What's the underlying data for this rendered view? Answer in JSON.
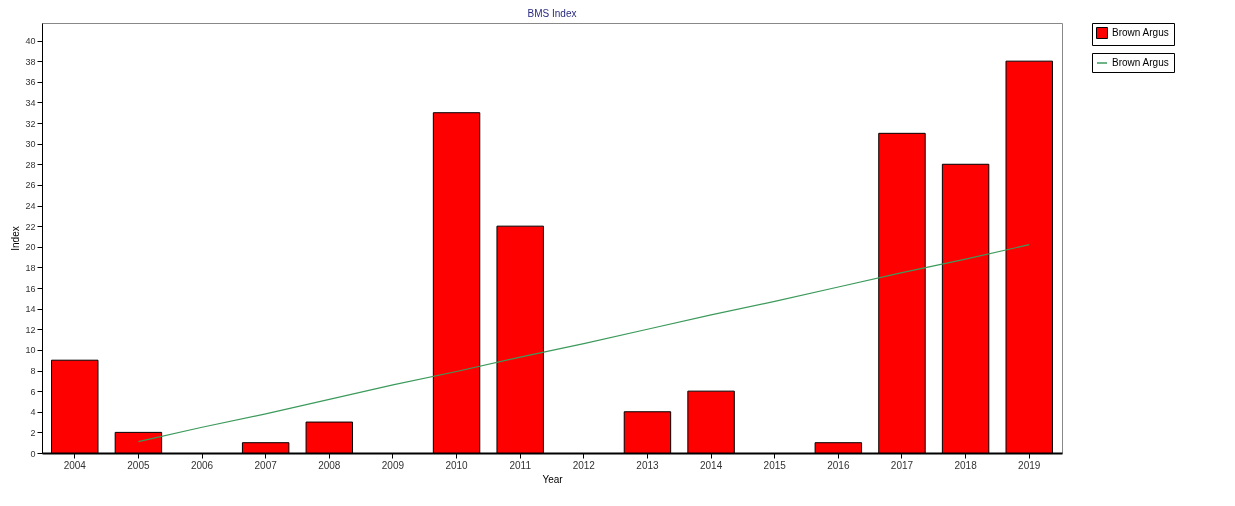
{
  "chart_data": {
    "type": "bar",
    "title": "BMS Index",
    "xlabel": "Year",
    "ylabel": "Index",
    "categories": [
      "2004",
      "2005",
      "2006",
      "2007",
      "2008",
      "2009",
      "2010",
      "2011",
      "2012",
      "2013",
      "2014",
      "2015",
      "2016",
      "2017",
      "2018",
      "2019"
    ],
    "ylim": [
      0,
      41.7
    ],
    "yticks": [
      0,
      2,
      4,
      6,
      8,
      10,
      12,
      14,
      16,
      18,
      20,
      22,
      24,
      26,
      28,
      30,
      32,
      34,
      36,
      38,
      40
    ],
    "legend": "top right",
    "grid": false,
    "series": [
      {
        "name": "Brown Argus",
        "color": "#ff0000",
        "values": [
          9,
          2,
          0,
          1,
          3,
          0,
          33,
          22,
          0,
          4,
          6,
          0,
          1,
          31,
          28,
          38
        ]
      },
      {
        "name": "Brown Argus",
        "type": "line",
        "color": "#3c9a5c",
        "values": [
          null,
          1.1,
          2.5,
          3.8,
          5.2,
          6.6,
          7.9,
          9.3,
          10.6,
          12.0,
          13.4,
          14.7,
          16.1,
          17.5,
          18.8,
          20.2
        ]
      }
    ]
  }
}
